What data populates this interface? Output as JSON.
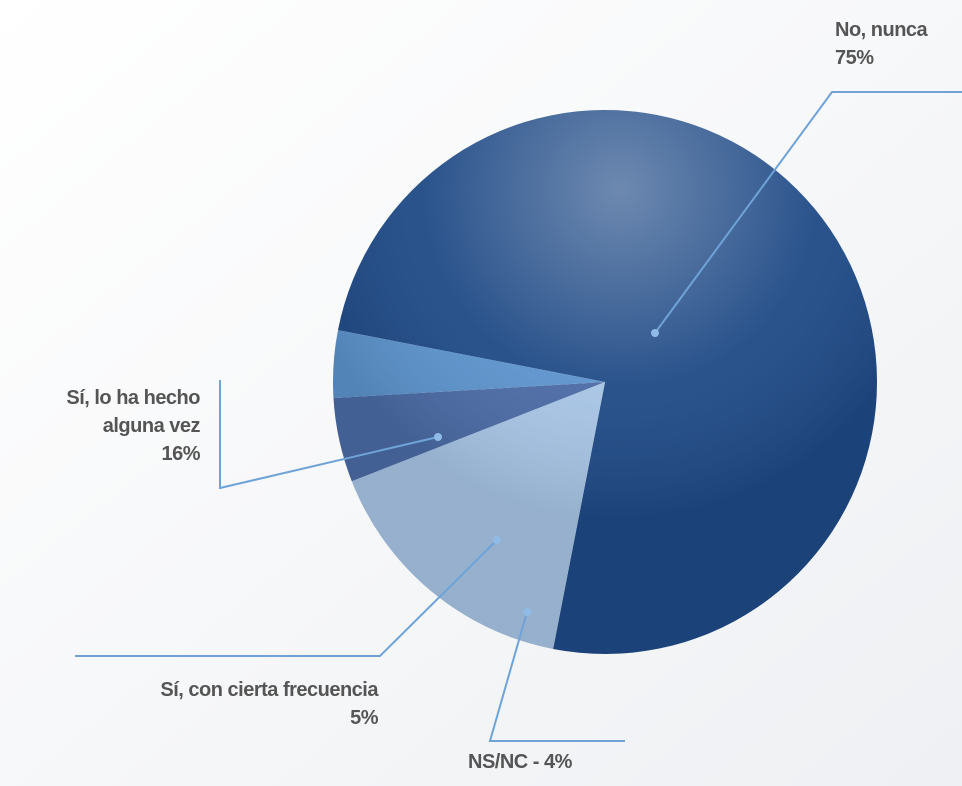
{
  "chart_data": {
    "type": "pie",
    "categories": [
      "No, nunca",
      "Sí, lo ha hecho alguna vez",
      "Sí, con cierta frecuencia",
      "NS/NC - 4%"
    ],
    "values": [
      75,
      16,
      5,
      4
    ],
    "value_labels": [
      "75%",
      "16%",
      "5%",
      null
    ],
    "colors": [
      "#1f4a86",
      "#a6c4e4",
      "#4a6aa4",
      "#5b92cb"
    ]
  }
}
